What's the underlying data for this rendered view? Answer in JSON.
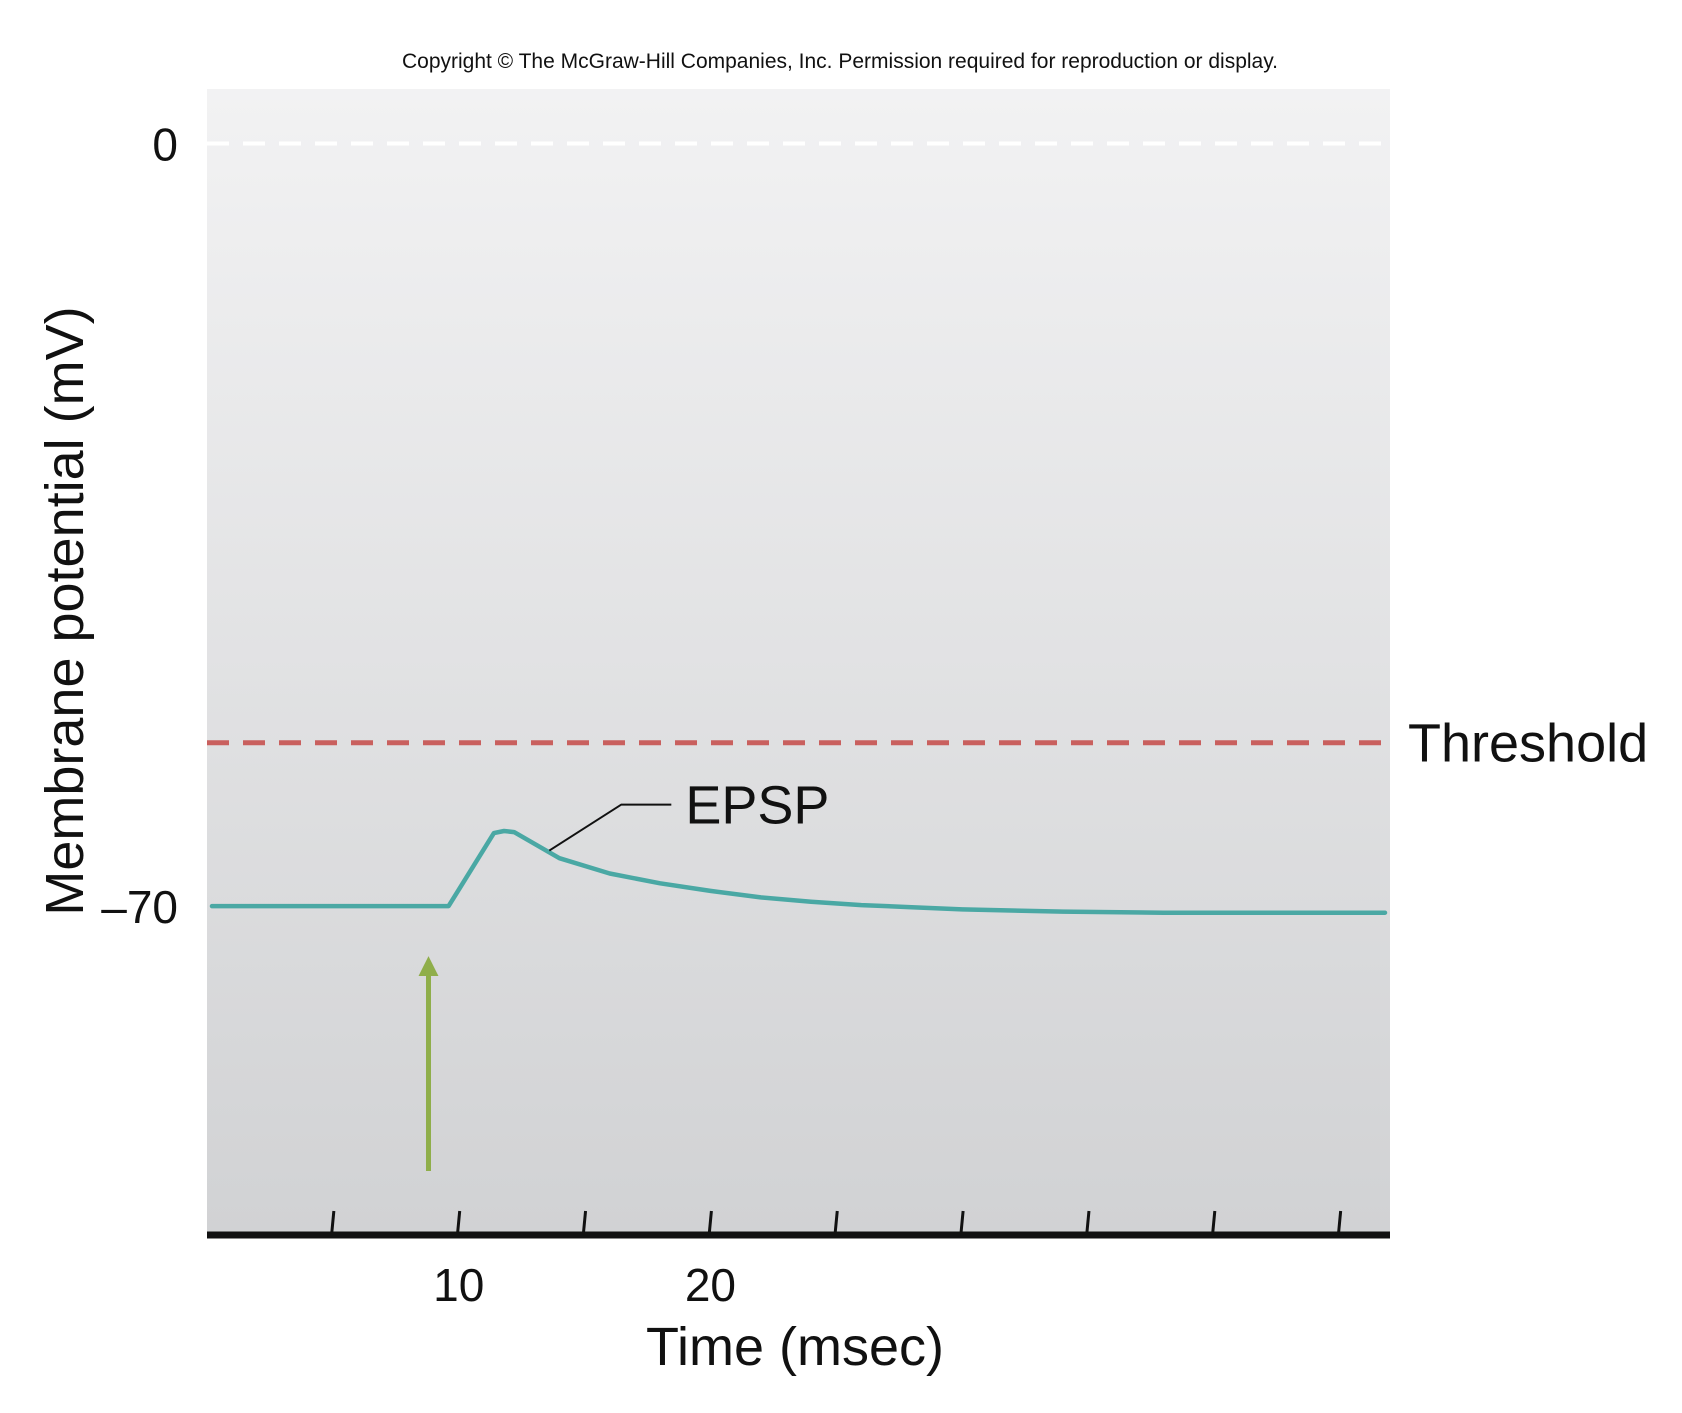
{
  "copyright": "Copyright © The McGraw-Hill Companies, Inc. Permission required for reproduction or display.",
  "colors": {
    "trace": "#4aa8a4",
    "threshold": "#c9605e",
    "zero_line": "#ffffff",
    "stimulus_arrow": "#8fae4a",
    "axis": "#111111",
    "bg_top": "#f2f2f3",
    "bg_bottom": "#d1d2d4"
  },
  "chart_data": {
    "type": "line",
    "xlabel": "Time (msec)",
    "ylabel": "Membrane potential (mV)",
    "xlim": [
      0,
      47
    ],
    "ylim": [
      -100,
      5
    ],
    "x_ticks": [
      5,
      10,
      15,
      20,
      25,
      30,
      35,
      40,
      45
    ],
    "x_tick_labels": [
      {
        "x": 10,
        "label": "10"
      },
      {
        "x": 20,
        "label": "20"
      }
    ],
    "y_tick_labels": [
      {
        "y": 0,
        "label": "0"
      },
      {
        "y": -70,
        "label": "–70"
      }
    ],
    "series": [
      {
        "x": [
          0.2,
          4,
          9.6,
          11.4,
          11.8,
          12.2,
          14,
          16,
          18,
          20,
          22,
          24,
          26,
          28,
          30,
          34,
          38,
          42,
          46.8
        ],
        "y": [
          -70.0,
          -70.0,
          -70.0,
          -63.3,
          -63.1,
          -63.2,
          -65.6,
          -67.0,
          -67.9,
          -68.6,
          -69.2,
          -69.6,
          -69.9,
          -70.1,
          -70.3,
          -70.5,
          -70.6,
          -70.6,
          -70.6
        ]
      }
    ],
    "reference_lines": [
      {
        "y": 0,
        "style": "dashed",
        "color": "#ffffff"
      },
      {
        "y": -55,
        "style": "dashed",
        "color": "#c9605e",
        "label": "Threshold"
      }
    ],
    "annotations": [
      {
        "text": "EPSP",
        "target_x": 13.6,
        "target_y": -64.9
      }
    ],
    "stimulus_arrow_x": 8.8,
    "grid": false,
    "legend": "none"
  }
}
